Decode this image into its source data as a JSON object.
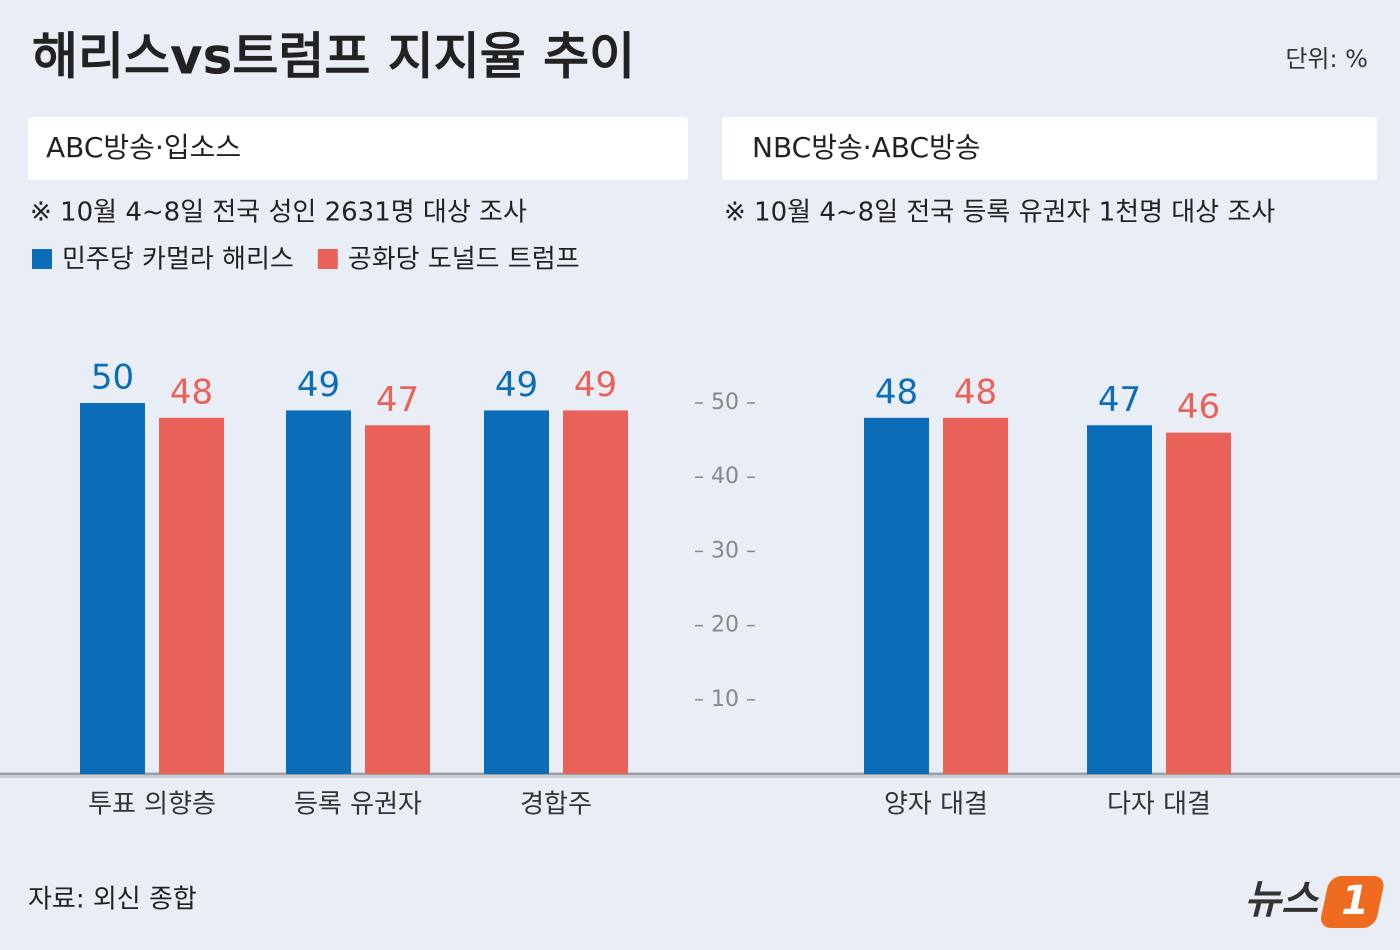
{
  "title": "해리스vs트럼프 지지율 추이",
  "unit": "단위: %",
  "source": "자료: 외신 종합",
  "logo": {
    "text": "뉴스",
    "badge": "1"
  },
  "chart_data": [
    {
      "type": "bar",
      "header": "ABC방송·입소스",
      "note": "※ 10월 4~8일 전국 성인 2631명 대상 조사",
      "categories": [
        "투표 의향층",
        "등록 유권자",
        "경합주"
      ],
      "series": [
        {
          "name": "민주당 카멀라 해리스",
          "color": "#0b6cb8",
          "values": [
            50,
            49,
            49
          ]
        },
        {
          "name": "공화당 도널드 트럼프",
          "color": "#e8625a",
          "values": [
            48,
            47,
            49
          ]
        }
      ],
      "ylim": [
        0,
        50
      ]
    },
    {
      "type": "bar",
      "header": "NBC방송·ABC방송",
      "note": "※ 10월 4~8일 전국 등록 유권자 1천명 대상 조사",
      "categories": [
        "양자 대결",
        "다자 대결"
      ],
      "series": [
        {
          "color": "#0b6cb8",
          "values": [
            48,
            47
          ]
        },
        {
          "color": "#e8625a",
          "values": [
            48,
            46
          ]
        }
      ],
      "ylim": [
        0,
        50
      ],
      "yticks": [
        10,
        20,
        30,
        40,
        50
      ]
    }
  ]
}
